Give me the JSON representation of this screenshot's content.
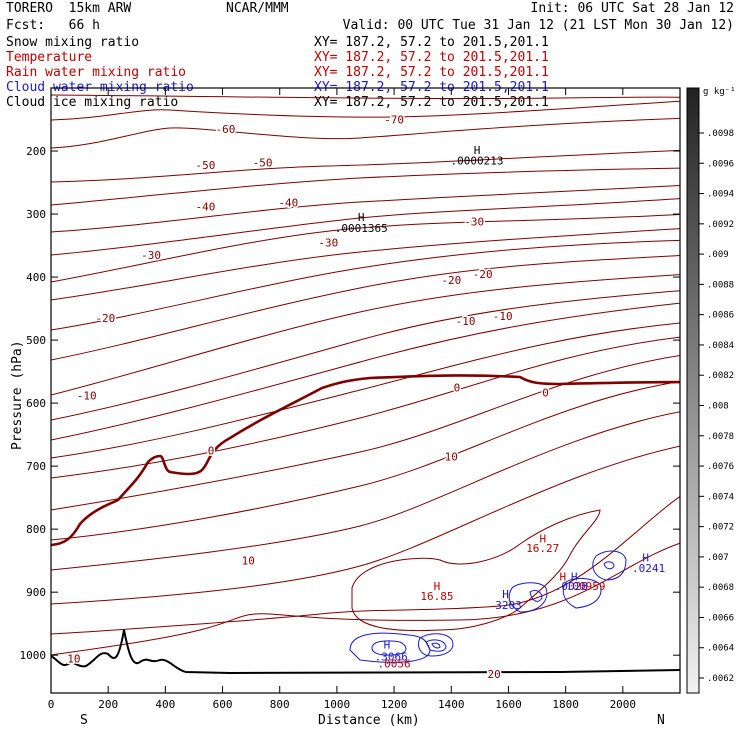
{
  "header": {
    "model": "TORERO  15km ARW",
    "center": "NCAR/MMM",
    "init": "Init: 06 UTC Sat 28 Jan 12",
    "fcst": "Fcst:   66 h",
    "valid": "Valid: 00 UTC Tue 31 Jan 12 (21 LST Mon 30 Jan 12)"
  },
  "fields": [
    {
      "name": "Snow mixing ratio",
      "xy": "XY= 187.2, 57.2 to 201.5,201.1",
      "color": "#000000"
    },
    {
      "name": "Temperature",
      "xy": "XY= 187.2, 57.2 to 201.5,201.1",
      "color": "#c00000"
    },
    {
      "name": "Rain water mixing ratio",
      "xy": "XY= 187.2, 57.2 to 201.5,201.1",
      "color": "#c00000"
    },
    {
      "name": "Cloud water mixing ratio",
      "xy": "XY= 187.2, 57.2 to 201.5,201.1",
      "color": "#1a1acc"
    },
    {
      "name": "Cloud ice mixing ratio",
      "xy": "XY= 187.2, 57.2 to 201.5,201.1",
      "color": "#000000"
    }
  ],
  "chart_data": {
    "type": "contour cross-section",
    "xlabel": "Distance (km)",
    "ylabel": "Pressure (hPa)",
    "x_left_end": "S",
    "x_right_end": "N",
    "xlim": [
      0,
      2200
    ],
    "ylim": [
      1060,
      100
    ],
    "x_ticks": [
      0,
      200,
      400,
      600,
      800,
      1000,
      1200,
      1400,
      1600,
      1800,
      2000
    ],
    "y_ticks": [
      200,
      300,
      400,
      500,
      600,
      700,
      800,
      900,
      1000
    ],
    "colorbar": {
      "unit": "g kg⁻¹",
      "tick_labels": [
        ".0098",
        ".0096",
        ".0094",
        ".0092",
        ".009",
        ".0088",
        ".0086",
        ".0084",
        ".0082",
        ".008",
        ".0078",
        ".0076",
        ".0074",
        ".0072",
        ".007",
        ".0068",
        ".0066",
        ".0064",
        ".0062"
      ]
    },
    "temperature_contour_labels": [
      {
        "text": "-70",
        "x": 1200,
        "p": 150
      },
      {
        "text": "-60",
        "x": 610,
        "p": 165
      },
      {
        "text": "-50",
        "x": 540,
        "p": 222
      },
      {
        "text": "-50",
        "x": 740,
        "p": 218
      },
      {
        "text": "-40",
        "x": 540,
        "p": 288
      },
      {
        "text": "-40",
        "x": 830,
        "p": 282
      },
      {
        "text": "-30",
        "x": 350,
        "p": 365
      },
      {
        "text": "-30",
        "x": 970,
        "p": 345
      },
      {
        "text": "-30",
        "x": 1480,
        "p": 312
      },
      {
        "text": "-20",
        "x": 190,
        "p": 465
      },
      {
        "text": "-20",
        "x": 1400,
        "p": 405
      },
      {
        "text": "-20",
        "x": 1510,
        "p": 395
      },
      {
        "text": "-10",
        "x": 125,
        "p": 588
      },
      {
        "text": "-10",
        "x": 1450,
        "p": 470
      },
      {
        "text": "-10",
        "x": 1580,
        "p": 462
      },
      {
        "text": "0",
        "x": 560,
        "p": 675
      },
      {
        "text": "0",
        "x": 1420,
        "p": 575
      },
      {
        "text": "0",
        "x": 1730,
        "p": 583
      },
      {
        "text": "10",
        "x": 1400,
        "p": 685
      },
      {
        "text": "10",
        "x": 690,
        "p": 850
      },
      {
        "text": "10",
        "x": 80,
        "p": 1005
      },
      {
        "text": "20",
        "x": 1550,
        "p": 1030
      }
    ],
    "extrema_labels": [
      {
        "text": "H",
        "x": 1490,
        "p": 198,
        "color": "#000000"
      },
      {
        "text": ".0000213",
        "x": 1490,
        "p": 215,
        "color": "#000000"
      },
      {
        "text": "H",
        "x": 1085,
        "p": 305,
        "color": "#000000"
      },
      {
        "text": ".0001365",
        "x": 1085,
        "p": 322,
        "color": "#000000"
      },
      {
        "text": "H",
        "x": 1720,
        "p": 815,
        "color": "#c00000"
      },
      {
        "text": "16.27",
        "x": 1720,
        "p": 830,
        "color": "#c00000"
      },
      {
        "text": "H",
        "x": 1350,
        "p": 890,
        "color": "#c00000"
      },
      {
        "text": "16.85",
        "x": 1350,
        "p": 906,
        "color": "#c00000"
      },
      {
        "text": "H",
        "x": 1790,
        "p": 875,
        "color": "#c00000"
      },
      {
        "text": ".00959",
        "x": 1870,
        "p": 890,
        "color": "#c00000"
      },
      {
        "text": "H",
        "x": 1830,
        "p": 875,
        "color": "#1a1acc"
      },
      {
        "text": ".0028",
        "x": 1820,
        "p": 890,
        "color": "#1a1acc"
      },
      {
        "text": "H",
        "x": 2080,
        "p": 845,
        "color": "#1a1acc"
      },
      {
        "text": ".0241",
        "x": 2090,
        "p": 862,
        "color": "#1a1acc"
      },
      {
        "text": "H",
        "x": 1590,
        "p": 903,
        "color": "#1a1acc"
      },
      {
        "text": "3203",
        "x": 1600,
        "p": 920,
        "color": "#1a1acc"
      },
      {
        "text": "H",
        "x": 1175,
        "p": 983,
        "color": "#1a1acc"
      },
      {
        "text": ".3066",
        "x": 1190,
        "p": 1002,
        "color": "#1a1acc"
      },
      {
        "text": ".0056",
        "x": 1200,
        "p": 1013,
        "color": "#c00000"
      }
    ]
  }
}
